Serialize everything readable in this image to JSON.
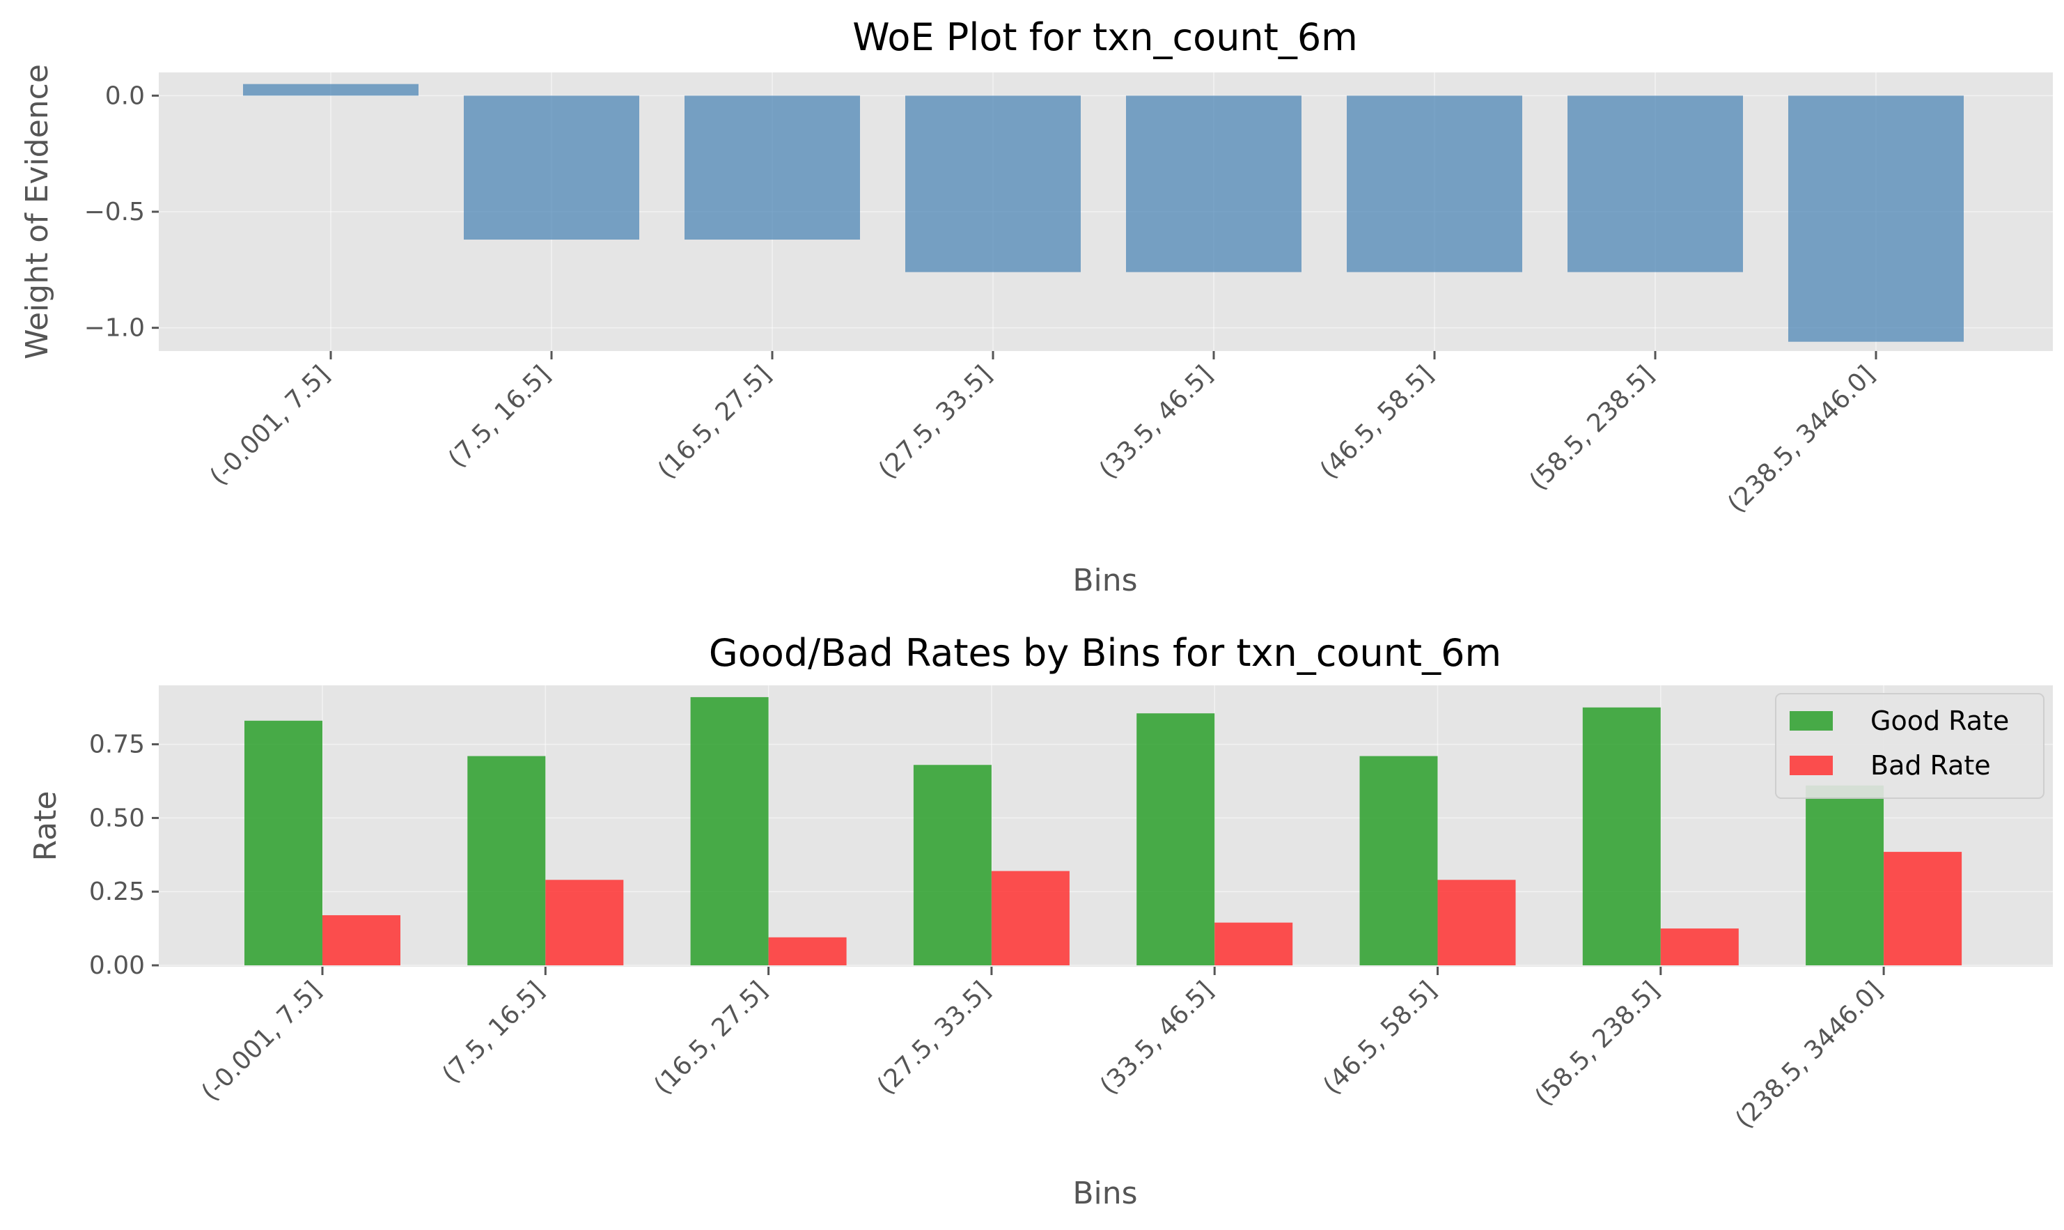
{
  "chart_data": [
    {
      "type": "bar",
      "title": "WoE Plot for txn_count_6m",
      "xlabel": "Bins",
      "ylabel": "Weight of Evidence",
      "categories": [
        "(-0.001, 7.5]",
        "(7.5, 16.5]",
        "(16.5, 27.5]",
        "(27.5, 33.5]",
        "(33.5, 46.5]",
        "(46.5, 58.5]",
        "(58.5, 238.5]",
        "(238.5, 3446.0]"
      ],
      "series": [
        {
          "values": [
            0.05,
            -0.62,
            -0.62,
            -0.76,
            -0.76,
            -0.76,
            -0.76,
            -1.06
          ],
          "color": "#4682b4"
        }
      ],
      "ylim": [
        -1.1,
        0.1
      ],
      "yticks": [
        0.0,
        -0.5,
        -1.0
      ],
      "ytick_labels": [
        "0.0",
        "−0.5",
        "−1.0"
      ],
      "grid": true
    },
    {
      "type": "bar",
      "title": "Good/Bad Rates by Bins for txn_count_6m",
      "xlabel": "Bins",
      "ylabel": "Rate",
      "categories": [
        "(-0.001, 7.5]",
        "(7.5, 16.5]",
        "(16.5, 27.5]",
        "(27.5, 33.5]",
        "(33.5, 46.5]",
        "(46.5, 58.5]",
        "(58.5, 238.5]",
        "(238.5, 3446.0]"
      ],
      "series": [
        {
          "name": "Good Rate",
          "values": [
            0.83,
            0.71,
            0.91,
            0.68,
            0.855,
            0.71,
            0.875,
            0.61
          ],
          "color": "#2ca02c"
        },
        {
          "name": "Bad Rate",
          "values": [
            0.17,
            0.29,
            0.095,
            0.32,
            0.145,
            0.29,
            0.125,
            0.385
          ],
          "color": "#ff3333"
        }
      ],
      "ylim": [
        0,
        0.95
      ],
      "yticks": [
        0.0,
        0.25,
        0.5,
        0.75
      ],
      "ytick_labels": [
        "0.00",
        "0.25",
        "0.50",
        "0.75"
      ],
      "legend": "top-right",
      "grid": true
    }
  ]
}
